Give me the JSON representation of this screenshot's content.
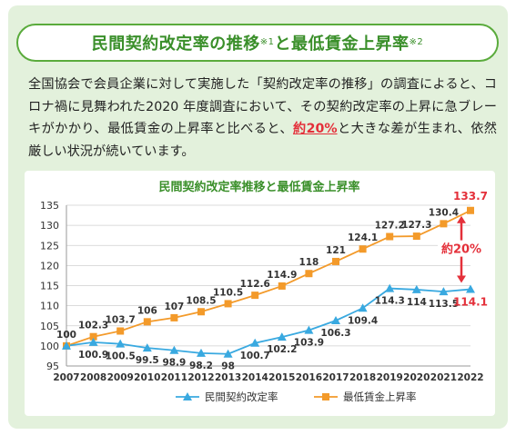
{
  "header": {
    "title_a": "民間契約改定率の推移",
    "note_a": "※1",
    "title_b": "と最低賃金上昇率",
    "note_b": "※2"
  },
  "body": {
    "text_before": "全国協会で会員企業に対して実施した「契約改定率の推移」の調査によると、コロナ禍に見舞われた2020 年度調査において、その契約改定率の上昇に急ブレーキがかかり、最低賃金の上昇率と比べると、",
    "highlight": "約20%",
    "text_after": "と大きな差が生まれ、依然厳しい状況が続いています。"
  },
  "colors": {
    "green": "#3a8f2a",
    "blue_series": "#39a9e0",
    "orange_series": "#f39a2a",
    "red": "#e4303a"
  },
  "chart_data": {
    "type": "line",
    "title": "民間契約改定率推移と最低賃金上昇率",
    "x": [
      "2007",
      "2008",
      "2009",
      "2010",
      "2011",
      "2012",
      "2013",
      "2014",
      "2015",
      "2016",
      "2017",
      "2018",
      "2019",
      "2020",
      "2021",
      "2022"
    ],
    "series": [
      {
        "name": "民間契約改定率",
        "marker": "triangle",
        "values": [
          100,
          100.9,
          100.5,
          99.5,
          98.9,
          98.2,
          98,
          100.7,
          102.2,
          103.9,
          106.3,
          109.4,
          114.3,
          114,
          113.5,
          114.1
        ]
      },
      {
        "name": "最低賃金上昇率",
        "marker": "square",
        "values": [
          100,
          102.3,
          103.7,
          106,
          107,
          108.5,
          110.5,
          112.6,
          114.9,
          118,
          121,
          124.1,
          127.2,
          127.3,
          130.4,
          133.7
        ]
      }
    ],
    "value_labels": {
      "s0": [
        "100",
        "100.9",
        "100.5",
        "99.5",
        "98.9",
        "98.2",
        "98",
        "100.7",
        "102.2",
        "103.9",
        "106.3",
        "109.4",
        "114.3",
        "114",
        "113.5",
        "114.1"
      ],
      "s1": [
        "100",
        "102.3",
        "103.7",
        "106",
        "107",
        "108.5",
        "110.5",
        "112.6",
        "114.9",
        "118",
        "121",
        "124.1",
        "127.2",
        "127.3",
        "130.4",
        "133.7"
      ]
    },
    "ylim": [
      95,
      135
    ],
    "yticks": [
      95,
      100,
      105,
      110,
      115,
      120,
      125,
      130,
      135
    ],
    "gap_annotation": "約20%",
    "legend_position": "bottom",
    "grid": true
  }
}
